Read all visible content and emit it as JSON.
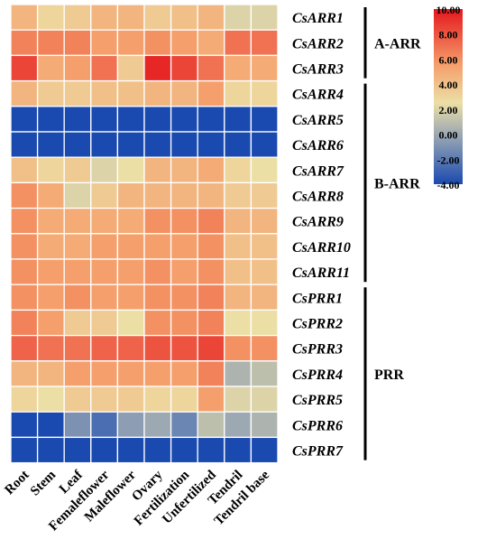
{
  "chart_data": {
    "type": "heatmap",
    "columns": [
      "Root",
      "Stem",
      "Leaf",
      "Femaleflower",
      "Maleflower",
      "Ovary",
      "Fertilization",
      "Unfertilized",
      "Tendril",
      "Tendril base"
    ],
    "rows": [
      "CsARR1",
      "CsARR2",
      "CsARR3",
      "CsARR4",
      "CsARR5",
      "CsARR6",
      "CsARR7",
      "CsARR8",
      "CsARR9",
      "CsARR10",
      "CsARR11",
      "CsPRR1",
      "CsPRR2",
      "CsPRR3",
      "CsPRR4",
      "CsPRR5",
      "CsPRR6",
      "CsPRR7"
    ],
    "values": [
      [
        4.5,
        3.0,
        3.5,
        4.5,
        4.5,
        3.5,
        4.0,
        4.5,
        2.0,
        2.0
      ],
      [
        6.5,
        6.5,
        6.5,
        5.5,
        5.5,
        6.0,
        5.5,
        5.0,
        7.0,
        7.0
      ],
      [
        8.5,
        5.0,
        5.5,
        7.0,
        3.5,
        9.5,
        8.5,
        7.0,
        5.0,
        5.0
      ],
      [
        4.5,
        3.5,
        3.5,
        4.0,
        4.0,
        4.5,
        4.5,
        5.5,
        3.0,
        3.0
      ],
      [
        -4.0,
        -4.0,
        -4.0,
        -4.0,
        -4.0,
        -4.0,
        -4.0,
        -4.0,
        -4.0,
        -4.0
      ],
      [
        -4.0,
        -4.0,
        -4.0,
        -4.0,
        -4.0,
        -4.0,
        -4.0,
        -4.0,
        -4.0,
        -4.0
      ],
      [
        4.0,
        3.0,
        3.5,
        2.0,
        2.5,
        4.5,
        4.5,
        5.0,
        3.0,
        2.5
      ],
      [
        6.0,
        5.0,
        2.0,
        3.5,
        4.5,
        4.5,
        4.5,
        4.5,
        3.5,
        3.5
      ],
      [
        6.0,
        5.0,
        5.0,
        5.0,
        5.0,
        6.0,
        6.0,
        6.5,
        4.5,
        4.5
      ],
      [
        6.0,
        5.0,
        5.0,
        5.5,
        5.5,
        5.5,
        5.5,
        6.0,
        4.0,
        4.0
      ],
      [
        6.0,
        5.5,
        5.5,
        5.5,
        5.5,
        6.0,
        5.5,
        6.0,
        4.0,
        4.0
      ],
      [
        6.0,
        5.5,
        6.0,
        5.5,
        5.5,
        6.0,
        6.0,
        6.5,
        4.5,
        4.5
      ],
      [
        6.5,
        5.5,
        3.5,
        3.5,
        2.5,
        6.0,
        6.0,
        6.5,
        2.5,
        2.5
      ],
      [
        7.5,
        7.0,
        7.0,
        7.5,
        7.5,
        8.0,
        8.0,
        8.5,
        6.0,
        6.0
      ],
      [
        4.5,
        4.5,
        5.5,
        5.5,
        5.5,
        5.5,
        5.5,
        6.5,
        0.5,
        1.0
      ],
      [
        3.0,
        2.5,
        3.5,
        3.5,
        3.5,
        3.0,
        3.0,
        5.5,
        2.0,
        2.0
      ],
      [
        -4.0,
        -4.0,
        -1.0,
        -2.5,
        -0.5,
        0.0,
        -1.5,
        1.0,
        0.0,
        0.5
      ],
      [
        -4.0,
        -4.0,
        -4.0,
        -4.0,
        -4.0,
        -4.0,
        -4.0,
        -4.0,
        -4.0,
        -4.0
      ]
    ],
    "groups": [
      {
        "label": "A-ARR",
        "start": 0,
        "end": 2
      },
      {
        "label": "B-ARR",
        "start": 3,
        "end": 10
      },
      {
        "label": "PRR",
        "start": 11,
        "end": 17
      }
    ],
    "colorbar": {
      "min": -4.0,
      "max": 10.0,
      "ticks": [
        "10.00",
        "8.00",
        "6.00",
        "4.00",
        "2.00",
        "0.00",
        "-2.00",
        "-4.00"
      ],
      "colors": {
        "low": "#1a4ab0",
        "mid_low": "#8d9eb4",
        "mid": "#ecdfa6",
        "mid_high": "#f5a06c",
        "high": "#e5171d"
      }
    }
  }
}
